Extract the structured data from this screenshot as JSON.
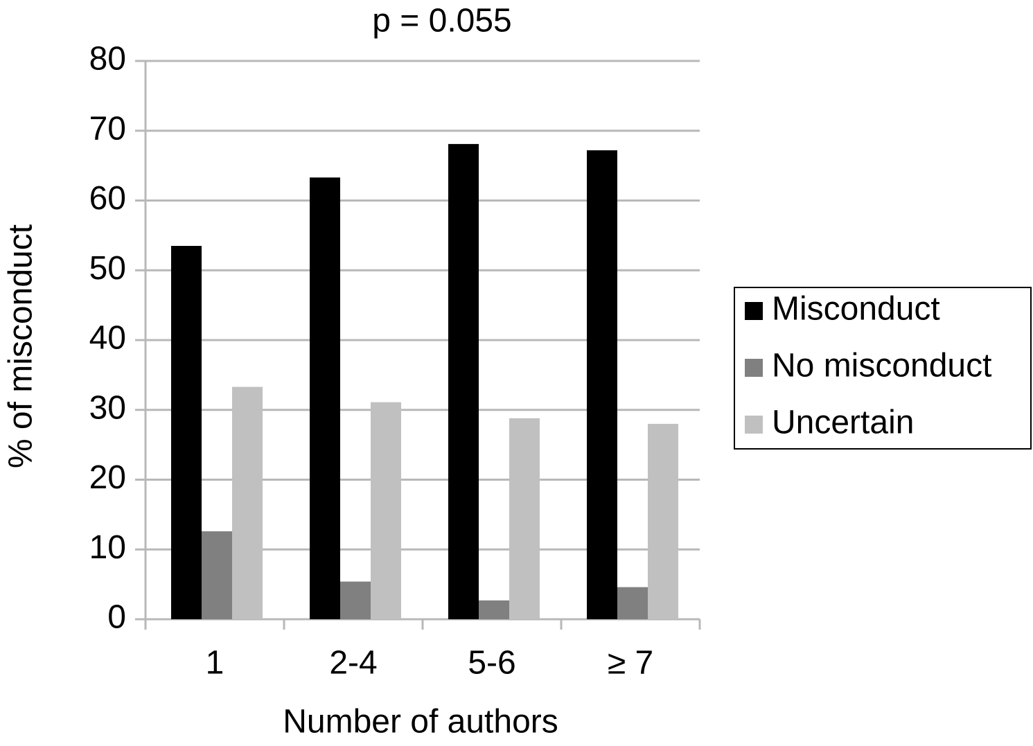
{
  "chart_data": {
    "type": "bar",
    "title": "p = 0.055",
    "x_label": "Number of authors",
    "y_label": "% of misconduct",
    "categories": [
      "1",
      "2-4",
      "5-6",
      "≥ 7"
    ],
    "series": [
      {
        "name": "Misconduct",
        "color": "#000000",
        "values": [
          53.5,
          63.3,
          68.1,
          67.2
        ]
      },
      {
        "name": "No misconduct",
        "color": "#808080",
        "values": [
          12.6,
          5.4,
          2.7,
          4.6
        ]
      },
      {
        "name": "Uncertain",
        "color": "#c0c0c0",
        "values": [
          33.3,
          31.1,
          28.8,
          28.0
        ]
      }
    ],
    "ylim": [
      0,
      80
    ],
    "yticks": [
      0,
      10,
      20,
      30,
      40,
      50,
      60,
      70,
      80
    ],
    "grid": true,
    "legend": "right"
  }
}
